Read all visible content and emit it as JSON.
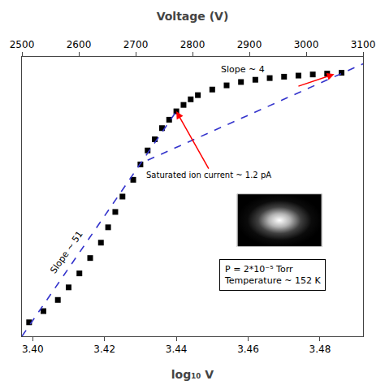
{
  "chart_data": {
    "type": "scatter",
    "xlabel": "log₁₀ V",
    "x2label": "Voltage (V)",
    "xlim": [
      3.397,
      3.492
    ],
    "xticks": [
      {
        "value": 3.4,
        "label": "3.40"
      },
      3.42,
      3.44,
      3.46,
      3.48
    ],
    "x2lim": [
      2500,
      3100
    ],
    "x2ticks": [
      2500,
      2600,
      2700,
      2800,
      2900,
      3000,
      3100
    ],
    "ylim": [
      0.0,
      1.0
    ],
    "yticks": [],
    "tick_labels": "x",
    "grid": false,
    "series": [
      {
        "type": "scatter",
        "color": "#000000",
        "marker": "square",
        "x": [
          3.399,
          3.403,
          3.407,
          3.41,
          3.413,
          3.416,
          3.419,
          3.421,
          3.423,
          3.425,
          3.428,
          3.43,
          3.432,
          3.434,
          3.436,
          3.438,
          3.44,
          3.442,
          3.444,
          3.446,
          3.45,
          3.454,
          3.458,
          3.462,
          3.466,
          3.47,
          3.474,
          3.478,
          3.482,
          3.486
        ],
        "values": [
          0.05,
          0.09,
          0.13,
          0.175,
          0.225,
          0.28,
          0.335,
          0.39,
          0.445,
          0.5,
          0.56,
          0.615,
          0.665,
          0.705,
          0.745,
          0.775,
          0.805,
          0.828,
          0.848,
          0.863,
          0.883,
          0.898,
          0.91,
          0.918,
          0.924,
          0.929,
          0.933,
          0.937,
          0.94,
          0.943
        ]
      },
      {
        "type": "line",
        "color": "#3333cc",
        "line_style": "dash",
        "x": [
          3.397,
          3.44
        ],
        "values": [
          0.0,
          0.805
        ]
      },
      {
        "type": "line",
        "color": "#3333cc",
        "line_style": "dash",
        "x": [
          3.432,
          3.492
        ],
        "values": [
          0.63,
          0.975
        ]
      }
    ],
    "annotations": [
      {
        "text": "Slope ~ 51",
        "x": 3.4095,
        "y": 0.3
      },
      {
        "text": "Slope ~ 4",
        "x": 3.452,
        "y": 0.955
      },
      {
        "text": "Saturated ion current ~ 1.2 pA",
        "x": 3.449,
        "y": 0.6,
        "arrow_x": 3.44,
        "arrow_y": 0.805
      },
      {
        "x": 3.474,
        "y": 0.895,
        "arrow_x": 3.484,
        "arrow_y": 0.938
      }
    ],
    "text_box": {
      "text": "P = 2*10⁻⁵ Torr\nTemperature ~ 152 K",
      "x": 3.452,
      "y": 0.22
    }
  }
}
